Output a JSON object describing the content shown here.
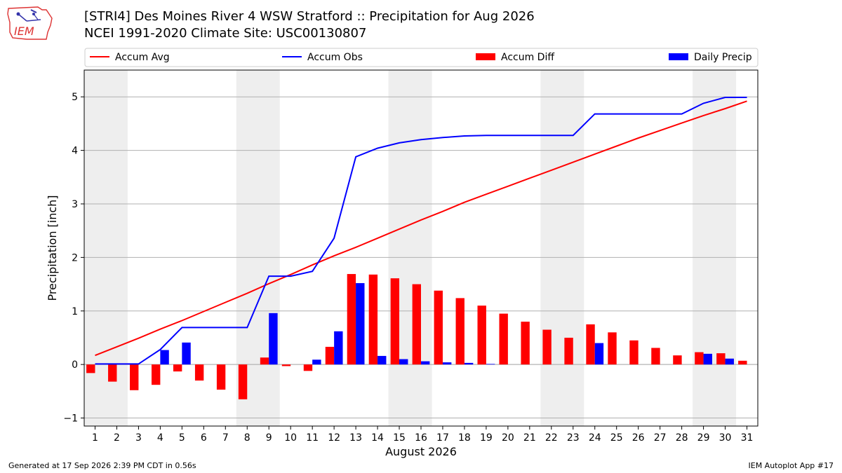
{
  "header": {
    "logo_text": "IEM",
    "title": "[STRI4] Des Moines River 4 WSW Stratford :: Precipitation for Aug 2026",
    "subtitle": "NCEI 1991-2020 Climate Site: USC00130807"
  },
  "footer": {
    "generated": "Generated at 17 Sep 2026 2:39 PM CDT in 0.56s",
    "app": "IEM Autoplot App #17"
  },
  "colors": {
    "accum_avg": "#ff0000",
    "accum_obs": "#0000ff",
    "accum_diff": "#ff0000",
    "daily_precip": "#0000ff",
    "weekend_shade": "#eeeeee",
    "grid": "#b0b0b0"
  },
  "chart_data": {
    "type": "bar",
    "xlabel": "August 2026",
    "ylabel": "Precipitation [inch]",
    "ylim": [
      -1.15,
      5.5
    ],
    "yticks": [
      -1,
      0,
      1,
      2,
      3,
      4,
      5
    ],
    "grid": "horizontal",
    "legend_position": "top",
    "x": [
      1,
      2,
      3,
      4,
      5,
      6,
      7,
      8,
      9,
      10,
      11,
      12,
      13,
      14,
      15,
      16,
      17,
      18,
      19,
      20,
      21,
      22,
      23,
      24,
      25,
      26,
      27,
      28,
      29,
      30,
      31
    ],
    "shaded_weekends": [
      [
        1,
        2
      ],
      [
        8,
        9
      ],
      [
        15,
        16
      ],
      [
        22,
        23
      ],
      [
        29,
        30
      ]
    ],
    "series": [
      {
        "name": "Accum Avg",
        "type": "line",
        "values": [
          0.17,
          0.33,
          0.49,
          0.66,
          0.82,
          0.99,
          1.16,
          1.33,
          1.51,
          1.68,
          1.86,
          2.03,
          2.19,
          2.36,
          2.53,
          2.7,
          2.86,
          3.03,
          3.18,
          3.33,
          3.48,
          3.63,
          3.78,
          3.93,
          4.08,
          4.23,
          4.37,
          4.51,
          4.65,
          4.78,
          4.92
        ]
      },
      {
        "name": "Accum Obs",
        "type": "line",
        "values": [
          0.01,
          0.01,
          0.01,
          0.28,
          0.69,
          0.69,
          0.69,
          0.69,
          1.65,
          1.65,
          1.74,
          2.36,
          3.88,
          4.04,
          4.14,
          4.2,
          4.24,
          4.27,
          4.28,
          4.28,
          4.28,
          4.28,
          4.28,
          4.68,
          4.68,
          4.68,
          4.68,
          4.68,
          4.88,
          4.99,
          4.99
        ]
      },
      {
        "name": "Accum Diff",
        "type": "bar",
        "values": [
          -0.16,
          -0.32,
          -0.48,
          -0.38,
          -0.13,
          -0.3,
          -0.47,
          -0.65,
          0.13,
          -0.03,
          -0.12,
          0.33,
          1.69,
          1.68,
          1.61,
          1.5,
          1.38,
          1.24,
          1.1,
          0.95,
          0.8,
          0.65,
          0.5,
          0.75,
          0.6,
          0.45,
          0.31,
          0.17,
          0.23,
          0.21,
          0.07
        ]
      },
      {
        "name": "Daily Precip",
        "type": "bar",
        "values": [
          0.0,
          0.0,
          0.0,
          0.27,
          0.41,
          0.0,
          0.0,
          0.0,
          0.96,
          0.0,
          0.09,
          0.62,
          1.52,
          0.16,
          0.1,
          0.06,
          0.04,
          0.03,
          0.01,
          0.0,
          0.0,
          0.0,
          0.0,
          0.4,
          0.0,
          0.0,
          0.0,
          0.0,
          0.2,
          0.11,
          0.0
        ]
      }
    ]
  }
}
